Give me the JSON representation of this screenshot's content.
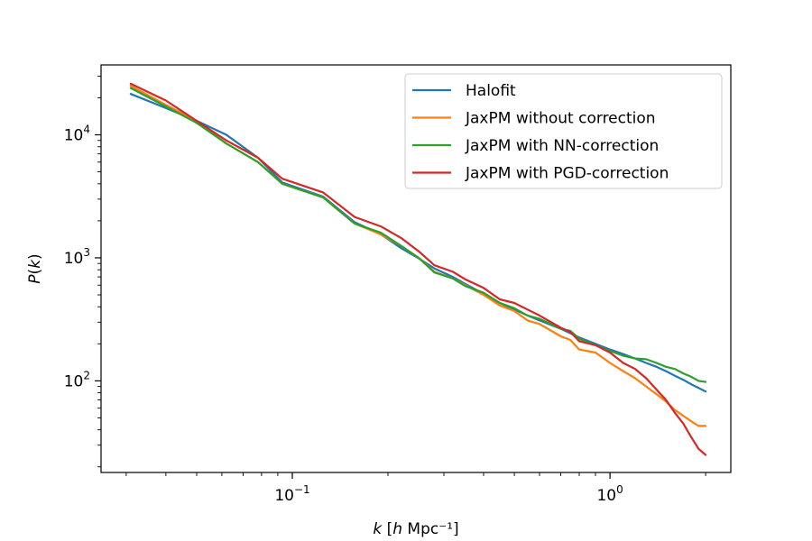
{
  "chart_data": {
    "type": "line",
    "title": "",
    "xlabel": "k [h Mpc⁻¹]",
    "ylabel": "P(k)",
    "xscale": "log",
    "yscale": "log",
    "xlim": [
      0.025,
      2.4
    ],
    "ylim": [
      18,
      37000
    ],
    "grid": false,
    "legend_position": "top-right",
    "x_ticks": [
      {
        "value": 0.1,
        "base": "10",
        "exp": "−1"
      },
      {
        "value": 1,
        "base": "10",
        "exp": "0"
      }
    ],
    "y_ticks": [
      {
        "value": 100,
        "base": "10",
        "exp": "2"
      },
      {
        "value": 1000,
        "base": "10",
        "exp": "3"
      },
      {
        "value": 10000,
        "base": "10",
        "exp": "4"
      }
    ],
    "series": [
      {
        "name": "Halofit",
        "color": "#1f77b4",
        "points": [
          [
            0.031,
            21500
          ],
          [
            0.04,
            16500
          ],
          [
            0.05,
            13000
          ],
          [
            0.062,
            10000
          ],
          [
            0.078,
            6500
          ],
          [
            0.093,
            4100
          ],
          [
            0.125,
            3150
          ],
          [
            0.157,
            1950
          ],
          [
            0.19,
            1550
          ],
          [
            0.22,
            1200
          ],
          [
            0.25,
            990
          ],
          [
            0.28,
            820
          ],
          [
            0.32,
            700
          ],
          [
            0.35,
            615
          ],
          [
            0.4,
            510
          ],
          [
            0.45,
            430
          ],
          [
            0.5,
            380
          ],
          [
            0.55,
            340
          ],
          [
            0.6,
            310
          ],
          [
            0.7,
            265
          ],
          [
            0.8,
            225
          ],
          [
            0.9,
            200
          ],
          [
            1.0,
            180
          ],
          [
            1.1,
            165
          ],
          [
            1.2,
            152
          ],
          [
            1.3,
            140
          ],
          [
            1.4,
            130
          ],
          [
            1.5,
            120
          ],
          [
            1.6,
            110
          ],
          [
            1.7,
            102
          ],
          [
            1.8,
            94
          ],
          [
            2.0,
            82
          ]
        ]
      },
      {
        "name": "JaxPM without correction",
        "color": "#ff7f0e",
        "points": [
          [
            0.031,
            25000
          ],
          [
            0.04,
            17500
          ],
          [
            0.05,
            13000
          ],
          [
            0.062,
            8500
          ],
          [
            0.078,
            6000
          ],
          [
            0.093,
            4000
          ],
          [
            0.125,
            3100
          ],
          [
            0.157,
            1900
          ],
          [
            0.19,
            1550
          ],
          [
            0.22,
            1250
          ],
          [
            0.25,
            1000
          ],
          [
            0.28,
            770
          ],
          [
            0.32,
            680
          ],
          [
            0.35,
            600
          ],
          [
            0.4,
            500
          ],
          [
            0.45,
            410
          ],
          [
            0.5,
            370
          ],
          [
            0.55,
            310
          ],
          [
            0.6,
            290
          ],
          [
            0.7,
            230
          ],
          [
            0.75,
            215
          ],
          [
            0.8,
            180
          ],
          [
            0.9,
            170
          ],
          [
            1.0,
            140
          ],
          [
            1.1,
            120
          ],
          [
            1.2,
            105
          ],
          [
            1.3,
            90
          ],
          [
            1.4,
            78
          ],
          [
            1.5,
            68
          ],
          [
            1.6,
            58
          ],
          [
            1.7,
            52
          ],
          [
            1.8,
            47
          ],
          [
            1.9,
            43
          ],
          [
            2.0,
            43
          ]
        ]
      },
      {
        "name": "JaxPM with NN-correction",
        "color": "#2ca02c",
        "points": [
          [
            0.031,
            24000
          ],
          [
            0.04,
            17000
          ],
          [
            0.05,
            12500
          ],
          [
            0.062,
            8500
          ],
          [
            0.078,
            6000
          ],
          [
            0.093,
            4000
          ],
          [
            0.125,
            3100
          ],
          [
            0.157,
            1900
          ],
          [
            0.19,
            1600
          ],
          [
            0.22,
            1250
          ],
          [
            0.25,
            1000
          ],
          [
            0.28,
            760
          ],
          [
            0.32,
            680
          ],
          [
            0.35,
            590
          ],
          [
            0.4,
            520
          ],
          [
            0.45,
            430
          ],
          [
            0.5,
            390
          ],
          [
            0.55,
            340
          ],
          [
            0.6,
            320
          ],
          [
            0.7,
            265
          ],
          [
            0.75,
            255
          ],
          [
            0.8,
            220
          ],
          [
            0.9,
            195
          ],
          [
            1.0,
            175
          ],
          [
            1.1,
            160
          ],
          [
            1.2,
            152
          ],
          [
            1.3,
            150
          ],
          [
            1.4,
            140
          ],
          [
            1.5,
            130
          ],
          [
            1.6,
            125
          ],
          [
            1.7,
            115
          ],
          [
            1.8,
            108
          ],
          [
            1.9,
            100
          ],
          [
            2.0,
            98
          ]
        ]
      },
      {
        "name": "JaxPM with PGD-correction",
        "color": "#d62728",
        "points": [
          [
            0.031,
            26000
          ],
          [
            0.04,
            19000
          ],
          [
            0.05,
            13000
          ],
          [
            0.062,
            9000
          ],
          [
            0.078,
            6500
          ],
          [
            0.093,
            4400
          ],
          [
            0.125,
            3400
          ],
          [
            0.157,
            2150
          ],
          [
            0.19,
            1800
          ],
          [
            0.22,
            1450
          ],
          [
            0.25,
            1130
          ],
          [
            0.28,
            870
          ],
          [
            0.32,
            770
          ],
          [
            0.35,
            670
          ],
          [
            0.4,
            570
          ],
          [
            0.45,
            460
          ],
          [
            0.5,
            430
          ],
          [
            0.55,
            380
          ],
          [
            0.6,
            340
          ],
          [
            0.7,
            270
          ],
          [
            0.75,
            250
          ],
          [
            0.8,
            210
          ],
          [
            0.9,
            195
          ],
          [
            1.0,
            170
          ],
          [
            1.1,
            140
          ],
          [
            1.2,
            125
          ],
          [
            1.3,
            105
          ],
          [
            1.4,
            85
          ],
          [
            1.5,
            70
          ],
          [
            1.6,
            55
          ],
          [
            1.7,
            45
          ],
          [
            1.8,
            35
          ],
          [
            1.9,
            28
          ],
          [
            2.0,
            25
          ]
        ]
      }
    ]
  }
}
